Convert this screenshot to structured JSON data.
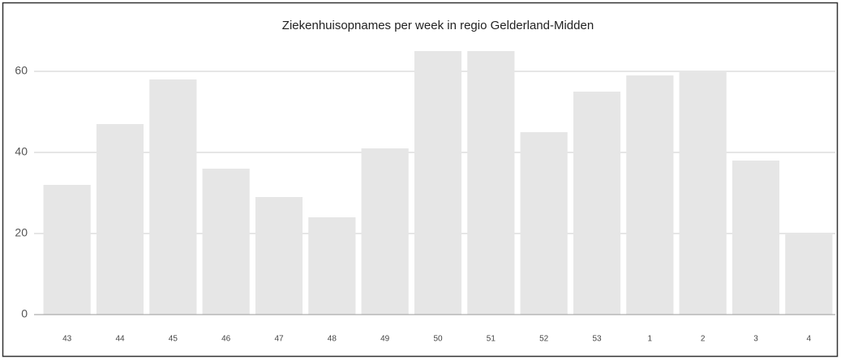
{
  "chart_data": {
    "type": "bar",
    "title": "Ziekenhuisopnames per week in regio Gelderland-Midden",
    "categories": [
      "43",
      "44",
      "45",
      "46",
      "47",
      "48",
      "49",
      "50",
      "51",
      "52",
      "53",
      "1",
      "2",
      "3",
      "4"
    ],
    "values": [
      32,
      47,
      58,
      36,
      29,
      24,
      41,
      65,
      65,
      45,
      55,
      59,
      60,
      38,
      20
    ],
    "color": "#e6e6e6",
    "ylim": [
      0,
      70
    ],
    "yticks": [
      0,
      20,
      40,
      60
    ],
    "grid": true
  }
}
